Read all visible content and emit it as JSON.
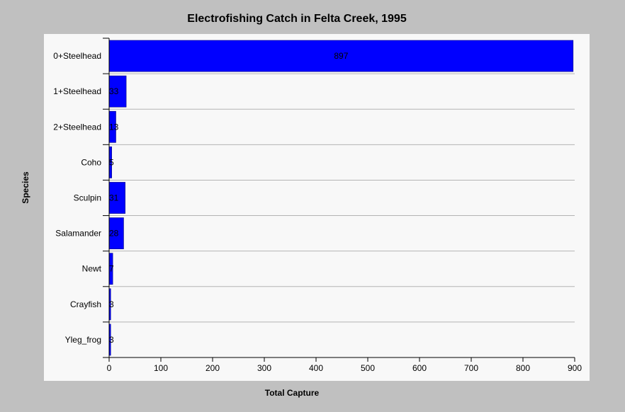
{
  "chart_data": {
    "type": "bar",
    "orientation": "horizontal",
    "title": "Electrofishing Catch in Felta Creek, 1995",
    "xlabel": "Total Capture",
    "ylabel": "Species",
    "categories": [
      "0+Steelhead",
      "1+Steelhead",
      "2+Steelhead",
      "Coho",
      "Sculpin",
      "Salamander",
      "Newt",
      "Crayfish",
      "Yleg_frog"
    ],
    "values": [
      897,
      33,
      13,
      5,
      31,
      28,
      7,
      3,
      3
    ],
    "data_labels": [
      "897",
      "33",
      "13",
      "5",
      "31",
      "28",
      "7",
      "3",
      "3"
    ],
    "xlim": [
      0,
      900
    ],
    "xticks": [
      0,
      100,
      200,
      300,
      400,
      500,
      600,
      700,
      800,
      900
    ],
    "grid": true,
    "bar_color": "#0000ff",
    "legend": null
  }
}
